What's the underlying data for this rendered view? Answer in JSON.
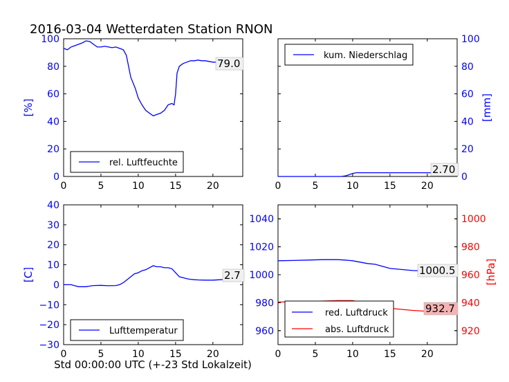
{
  "title": "2016-03-04 Wetterdaten Station RNON",
  "xlabel": "Std 00:00:00 UTC (+-23 Std Lokalzeit)",
  "colors": {
    "blue": "#0000ff",
    "red": "#ff0000",
    "black": "#000000",
    "red_box": "#f4b4b4",
    "grey_box": "#f0f0f0"
  },
  "chart_data": [
    {
      "id": "humidity",
      "type": "line",
      "xlim": [
        0,
        24
      ],
      "ylim": [
        0,
        100
      ],
      "xticks": [
        "0",
        "5",
        "10",
        "15",
        "20"
      ],
      "yticks": [
        "0",
        "20",
        "40",
        "60",
        "80",
        "100"
      ],
      "ylabel": "[%]",
      "ylabel_color": "#0000ff",
      "y_axis_side": "left",
      "legend": "rel. Luftfeuchte",
      "legend_position": "lower-left",
      "annotation": "79.0",
      "series": [
        {
          "name": "rel. Luftfeuchte",
          "color": "#0000ff",
          "x": [
            0,
            0.5,
            1,
            1.5,
            2,
            2.5,
            3,
            3.5,
            4,
            4.5,
            5,
            5.5,
            6,
            6.5,
            7,
            7.5,
            8,
            8.4,
            8.7,
            9,
            9.3,
            9.6,
            10,
            10.5,
            11,
            11.5,
            12,
            12.5,
            13,
            13.5,
            14,
            14.5,
            14.8,
            15,
            15.2,
            15.5,
            16,
            16.5,
            17,
            17.5,
            18,
            18.5,
            19,
            19.5,
            20,
            20.5,
            21,
            21.5,
            22,
            22.5,
            23,
            23.5,
            24
          ],
          "y": [
            93,
            92,
            94,
            95,
            96,
            97,
            98.5,
            98,
            96,
            94,
            94,
            94.5,
            94,
            93.5,
            94,
            93,
            92,
            88,
            80,
            72,
            68,
            64,
            57,
            52,
            48,
            46,
            44,
            45,
            46,
            48,
            52,
            53,
            52,
            60,
            75,
            80,
            82,
            83,
            84,
            84,
            84.5,
            84,
            84,
            83.5,
            83,
            83,
            82.5,
            82,
            82,
            81,
            80.5,
            80,
            79
          ]
        }
      ]
    },
    {
      "id": "precip",
      "type": "line",
      "xlim": [
        0,
        24
      ],
      "ylim": [
        0,
        100
      ],
      "xticks": [
        "0",
        "5",
        "10",
        "15",
        "20"
      ],
      "yticks": [
        "0",
        "20",
        "40",
        "60",
        "80",
        "100"
      ],
      "ylabel": "[mm]",
      "ylabel_color": "#0000ff",
      "y_axis_side": "right",
      "legend": "kum. Niederschlag",
      "legend_position": "upper-left",
      "annotation": "2.70",
      "series": [
        {
          "name": "kum. Niederschlag",
          "color": "#0000ff",
          "x": [
            0,
            8.5,
            9,
            9.5,
            10,
            10.5,
            24
          ],
          "y": [
            0,
            0,
            0.4,
            1.2,
            2.2,
            2.7,
            2.7
          ]
        }
      ]
    },
    {
      "id": "temperature",
      "type": "line",
      "xlim": [
        0,
        24
      ],
      "ylim": [
        -30,
        40
      ],
      "xticks": [
        "0",
        "5",
        "10",
        "15",
        "20"
      ],
      "yticks": [
        "−30",
        "−20",
        "−10",
        "0",
        "10",
        "20",
        "30",
        "40"
      ],
      "ylabel": "[C]",
      "ylabel_color": "#0000ff",
      "y_axis_side": "left",
      "legend": "Lufttemperatur",
      "legend_position": "lower-left",
      "annotation": "2.7",
      "series": [
        {
          "name": "Lufttemperatur",
          "color": "#0000ff",
          "x": [
            0,
            1,
            1.5,
            2,
            2.5,
            3,
            3.5,
            4,
            5,
            6,
            7,
            7.5,
            8,
            8.5,
            9,
            9.5,
            10,
            10.5,
            11,
            11.5,
            12,
            12.5,
            13,
            13.5,
            14,
            14.5,
            15,
            15.5,
            16,
            16.5,
            17,
            17.5,
            18,
            19,
            20,
            21,
            22,
            23,
            24
          ],
          "y": [
            0,
            0,
            -0.5,
            -1,
            -1,
            -1,
            -0.7,
            -0.4,
            -0.3,
            -0.5,
            -0.4,
            0,
            1,
            2.5,
            4,
            5.5,
            6,
            7,
            7.5,
            8.5,
            9.5,
            9,
            9,
            8.5,
            8.5,
            8,
            6,
            4,
            3.5,
            3,
            2.7,
            2.5,
            2.4,
            2.3,
            2.3,
            2.5,
            2.6,
            2.7,
            2.7
          ]
        }
      ]
    },
    {
      "id": "pressure",
      "type": "line",
      "xlim": [
        0,
        24
      ],
      "ylim": [
        950,
        1050
      ],
      "ylim_right": [
        910,
        1010
      ],
      "xticks": [
        "0",
        "5",
        "10",
        "15",
        "20"
      ],
      "yticks": [
        "960",
        "980",
        "1000",
        "1020",
        "1040"
      ],
      "yticks_right": [
        "920",
        "940",
        "960",
        "980",
        "1000"
      ],
      "ylabel_right": "[hPa]",
      "ylabel_right_color": "#ff0000",
      "legend_position": "lower-left",
      "annotations": [
        "1000.5",
        "932.7"
      ],
      "series": [
        {
          "name": "red. Luftdruck",
          "color": "#0000ff",
          "axis": "left",
          "x": [
            0,
            2,
            4,
            6,
            8,
            9,
            10,
            11,
            12,
            13,
            14,
            15,
            16,
            18,
            20,
            22,
            24
          ],
          "y": [
            1010,
            1010.2,
            1010.5,
            1010.8,
            1010.8,
            1010.5,
            1010,
            1009,
            1008,
            1007.5,
            1006,
            1004.5,
            1004,
            1003,
            1002.5,
            1001.8,
            1000.5
          ]
        },
        {
          "name": "abs. Luftdruck",
          "color": "#ff0000",
          "axis": "right",
          "x": [
            0,
            2,
            4,
            6,
            8,
            9,
            10,
            11,
            12,
            13,
            14,
            15,
            16,
            18,
            20,
            22,
            24
          ],
          "y": [
            940.5,
            940.5,
            940.8,
            941.2,
            941.5,
            941.5,
            941.5,
            940.5,
            939.5,
            938.5,
            937,
            936,
            935.5,
            934.5,
            933.8,
            933.2,
            932.7
          ]
        }
      ]
    }
  ]
}
